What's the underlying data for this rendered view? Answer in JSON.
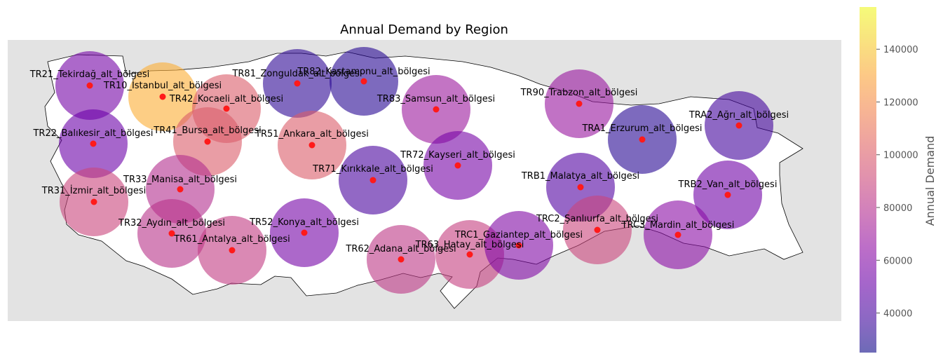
{
  "chart_data": {
    "type": "bubble-map",
    "title": "Annual Demand by Region",
    "colorbar": {
      "label": "Annual Demand",
      "min": 25000,
      "max": 156000,
      "ticks": [
        40000,
        60000,
        80000,
        100000,
        120000,
        140000
      ],
      "tick_labels": [
        "40000",
        "60000",
        "80000",
        "100000",
        "120000",
        "140000"
      ],
      "colormap": "plasma"
    },
    "background_color": "#e3e3e3",
    "land_color": "#ffffff",
    "marker_color": "#ff1a1a",
    "regions": [
      {
        "name": "TR21_Tekirdağ_alt_bölgesi",
        "demand": 62000
      },
      {
        "name": "TR10_İstanbul_alt_bölgesi",
        "demand": 150000
      },
      {
        "name": "TR42_Kocaeli_alt_bölgesi",
        "demand": 118000
      },
      {
        "name": "TR81_Zonguldak_alt_bölgesi",
        "demand": 35000
      },
      {
        "name": "TR82_Kastamonu_alt_bölgesi",
        "demand": 33000
      },
      {
        "name": "TR83_Samsun_alt_bölgesi",
        "demand": 80000
      },
      {
        "name": "TR90_Trabzon_alt_bölgesi",
        "demand": 78000
      },
      {
        "name": "TRA2_Ağrı_alt_bölgesi",
        "demand": 42000
      },
      {
        "name": "TRA1_Erzurum_alt_bölgesi",
        "demand": 33000
      },
      {
        "name": "TR22_Balıkesir_alt_bölgesi",
        "demand": 58000
      },
      {
        "name": "TR41_Bursa_alt_bölgesi",
        "demand": 118000
      },
      {
        "name": "TR51_Ankara_alt_bölgesi",
        "demand": 118000
      },
      {
        "name": "TR72_Kayseri_alt_bölgesi",
        "demand": 63000
      },
      {
        "name": "TR71_Kırıkkale_alt_bölgesi",
        "demand": 45000
      },
      {
        "name": "TRB1_Malatya_alt_bölgesi",
        "demand": 48000
      },
      {
        "name": "TRB2_Van_alt_bölgesi",
        "demand": 60000
      },
      {
        "name": "TR33_Manisa_alt_bölgesi",
        "demand": 92000
      },
      {
        "name": "TR31_İzmir_alt_bölgesi",
        "demand": 105000
      },
      {
        "name": "TR32_Aydın_alt_bölgesi",
        "demand": 95000
      },
      {
        "name": "TR61_Antalya_alt_bölgesi",
        "demand": 100000
      },
      {
        "name": "TR52_Konya_alt_bölgesi",
        "demand": 62000
      },
      {
        "name": "TRC2_Şanlıurfa_alt_bölgesi",
        "demand": 105000
      },
      {
        "name": "TRC3_Mardin_alt_bölgesi",
        "demand": 72000
      },
      {
        "name": "TR62_Adana_alt_bölgesi",
        "demand": 98000
      },
      {
        "name": "TR63_Hatay_alt_bölgesi",
        "demand": 102000
      },
      {
        "name": "TRC1_Gaziantep_alt_bölgesi",
        "demand": 68000
      }
    ]
  }
}
